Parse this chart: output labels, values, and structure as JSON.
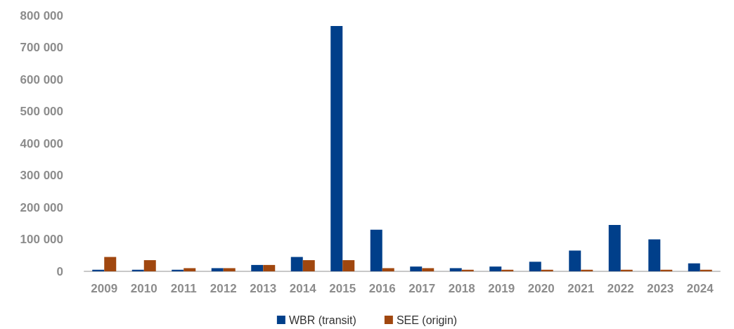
{
  "chart_data": {
    "type": "bar",
    "categories": [
      "2009",
      "2010",
      "2011",
      "2012",
      "2013",
      "2014",
      "2015",
      "2016",
      "2017",
      "2018",
      "2019",
      "2020",
      "2021",
      "2022",
      "2023",
      "2024"
    ],
    "series": [
      {
        "name": "WBR (transit)",
        "color": "#003f8a",
        "values": [
          5000,
          5000,
          5000,
          10000,
          20000,
          45000,
          767000,
          130000,
          15000,
          10000,
          15000,
          30000,
          65000,
          145000,
          100000,
          25000
        ]
      },
      {
        "name": "SEE (origin)",
        "color": "#a0470f",
        "values": [
          45000,
          35000,
          10000,
          10000,
          20000,
          35000,
          35000,
          10000,
          10000,
          5000,
          5000,
          5000,
          5000,
          5000,
          5000,
          5000
        ]
      }
    ],
    "ylim": [
      0,
      800000
    ],
    "yticks": [
      {
        "value": 0,
        "label": "0"
      },
      {
        "value": 100000,
        "label": "100 000"
      },
      {
        "value": 200000,
        "label": "200 000"
      },
      {
        "value": 300000,
        "label": "300 000"
      },
      {
        "value": 400000,
        "label": "400 000"
      },
      {
        "value": 500000,
        "label": "500 000"
      },
      {
        "value": 600000,
        "label": "600 000"
      },
      {
        "value": 700000,
        "label": "700 000"
      },
      {
        "value": 800000,
        "label": "800 000"
      }
    ],
    "grid": false,
    "legend": "bottom"
  }
}
